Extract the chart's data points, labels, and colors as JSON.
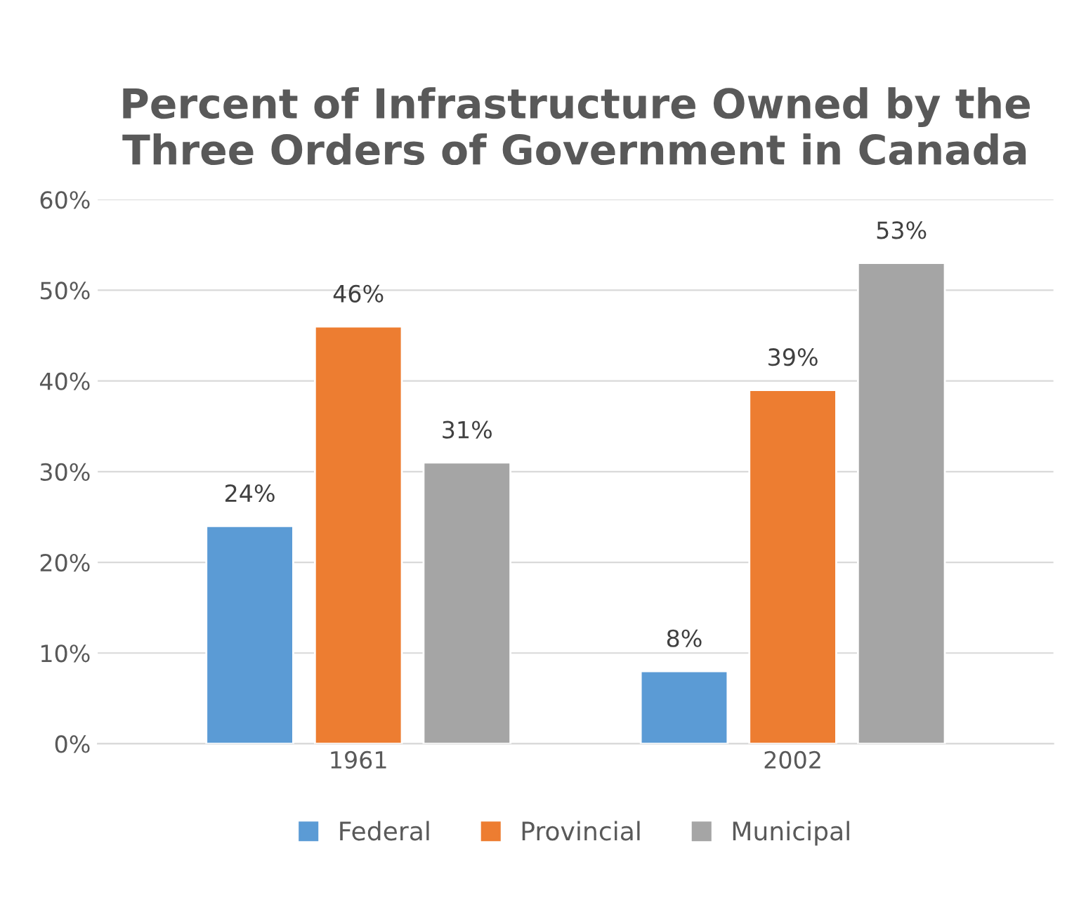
{
  "chart_data": {
    "type": "bar",
    "title": "Percent of Infrastructure Owned by the\nThree Orders of Government in Canada",
    "categories": [
      "1961",
      "2002"
    ],
    "series": [
      {
        "name": "Federal",
        "color": "#5b9bd5",
        "values": [
          24,
          8
        ],
        "value_labels": [
          "24%",
          "8%"
        ]
      },
      {
        "name": "Provincial",
        "color": "#ed7d31",
        "values": [
          46,
          39
        ],
        "value_labels": [
          "46%",
          "39%"
        ]
      },
      {
        "name": "Municipal",
        "color": "#a5a5a5",
        "values": [
          31,
          53
        ],
        "value_labels": [
          "31%",
          "53%"
        ]
      }
    ],
    "ylim": [
      0,
      60
    ],
    "yticks": [
      {
        "value": 0,
        "label": "0%"
      },
      {
        "value": 10,
        "label": "10%"
      },
      {
        "value": 20,
        "label": "20%"
      },
      {
        "value": 30,
        "label": "30%"
      },
      {
        "value": 40,
        "label": "40%"
      },
      {
        "value": 50,
        "label": "50%"
      },
      {
        "value": 60,
        "label": "60%"
      }
    ],
    "grid": "y",
    "legend": "bottom"
  }
}
